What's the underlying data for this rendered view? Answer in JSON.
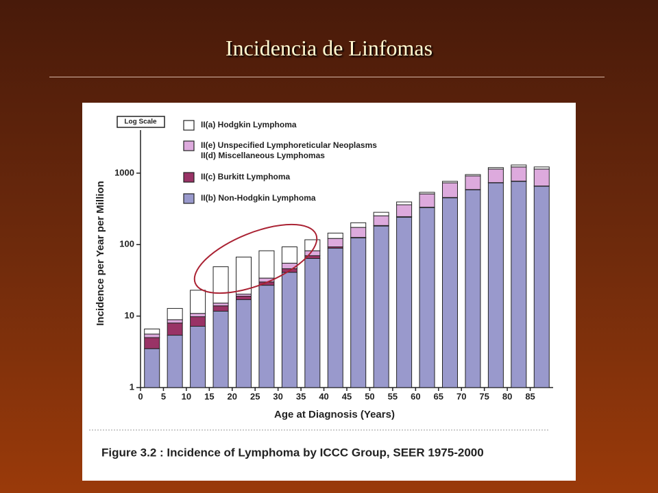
{
  "slide_title": "Incidencia de Linfomas",
  "chart_data": {
    "type": "stacked-bar",
    "scale_note": "Log Scale",
    "ylabel": "Incidence per Year per Million",
    "xlabel": "Age at Diagnosis (Years)",
    "caption": "Figure 3.2 : Incidence of Lymphoma by ICCC Group, SEER 1975-2000",
    "log_scale": true,
    "x": [
      2.5,
      7.5,
      12.5,
      17.5,
      22.5,
      27.5,
      32.5,
      37.5,
      42.5,
      47.5,
      52.5,
      57.5,
      62.5,
      67.5,
      72.5,
      77.5,
      82.5,
      87.5
    ],
    "xlim": [
      0,
      90
    ],
    "xticks": [
      0,
      5,
      10,
      15,
      20,
      25,
      30,
      35,
      40,
      45,
      50,
      55,
      60,
      65,
      70,
      75,
      80,
      85
    ],
    "ylim": [
      1,
      4000
    ],
    "yticks": [
      1,
      10,
      100,
      1000
    ],
    "series": [
      {
        "name": "II(b)  Non-Hodgkin Lymphoma",
        "color": "#9999cc",
        "values": [
          3.5,
          5.4,
          7.2,
          11.7,
          17,
          27,
          41,
          64,
          89,
          124,
          182,
          242,
          330,
          452,
          585,
          731,
          768,
          655
        ]
      },
      {
        "name": "II(c) Burkitt Lymphoma",
        "color": "#993366",
        "values": [
          1.5,
          2.6,
          2.6,
          2.2,
          2,
          3,
          5,
          6,
          4,
          2,
          3,
          4,
          4,
          5,
          5,
          6,
          6,
          6
        ]
      },
      {
        "name": "II(e) Unspecified Lymphoreticular Neoplasms\nII(d) Miscellaneous Lymphomas",
        "color": "#ddaadd",
        "values": [
          0.6,
          0.9,
          1.1,
          1.3,
          1.3,
          4,
          9,
          12,
          29,
          48,
          68,
          115,
          178,
          274,
          323,
          403,
          446,
          479
        ]
      },
      {
        "name": "II(a) Hodgkin Lymphoma",
        "color": "#ffffff",
        "values": [
          1.0,
          3.9,
          12.1,
          33.8,
          46.7,
          48,
          38,
          35,
          23,
          28,
          30,
          34,
          27,
          37,
          42,
          56,
          80,
          80
        ]
      }
    ]
  }
}
